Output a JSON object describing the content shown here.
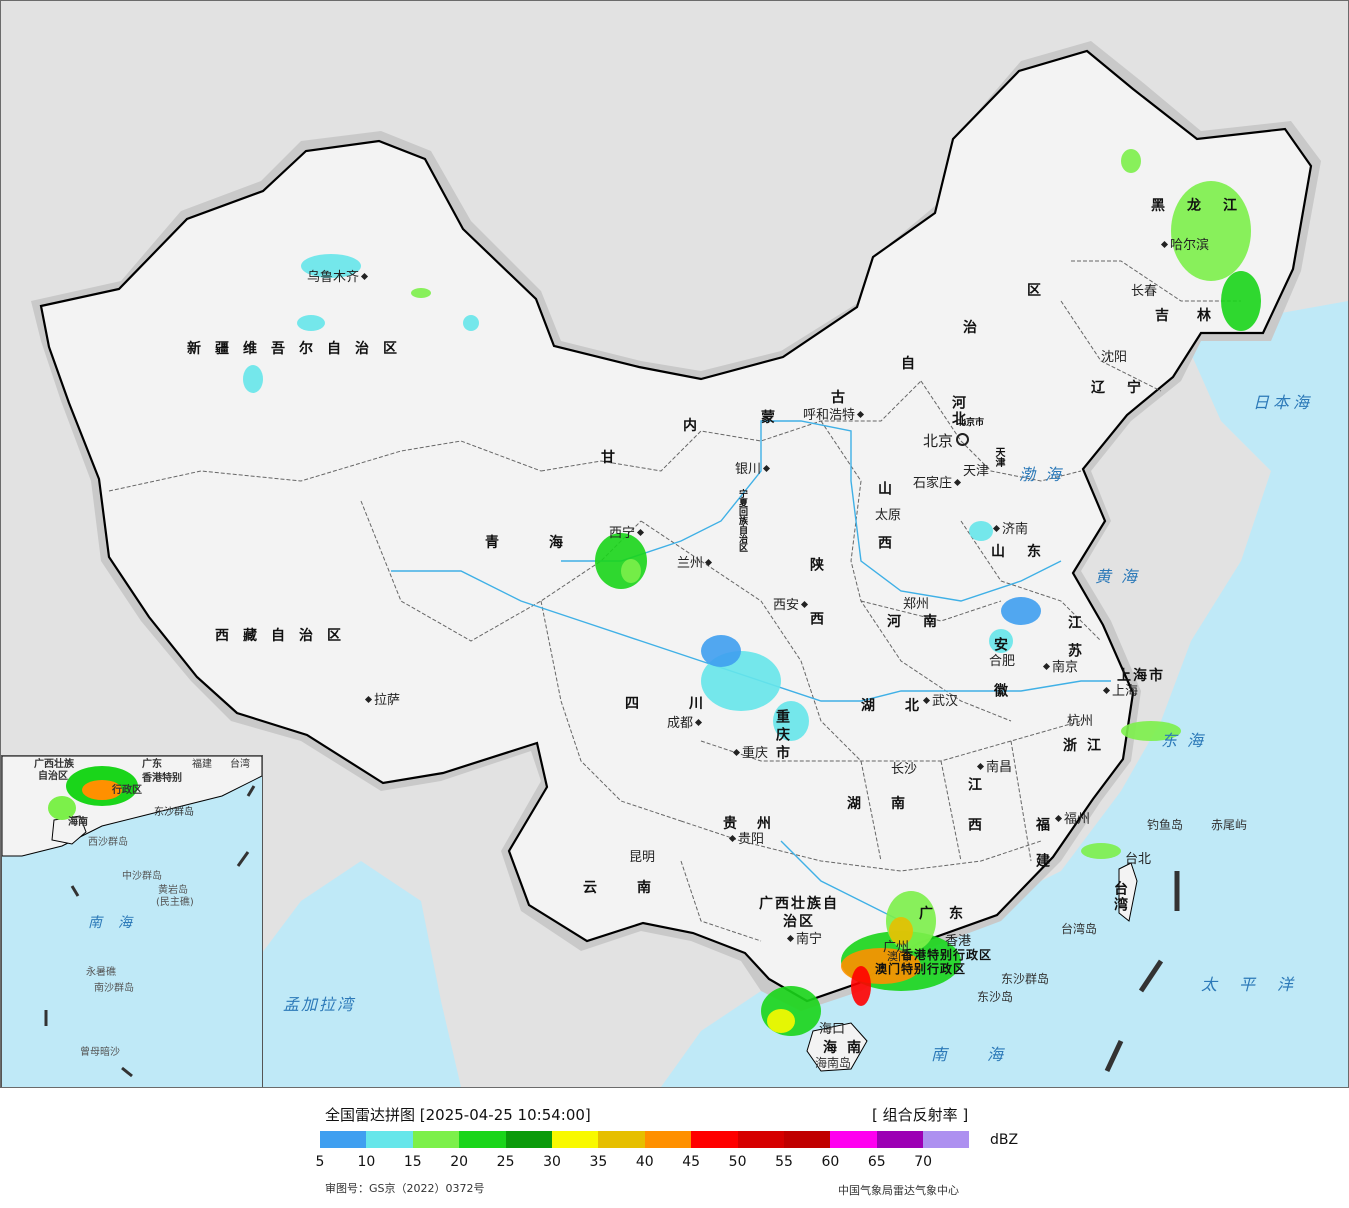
{
  "regions": {
    "xinjiang": "新疆维吾尔自治区",
    "xizang": "西藏自治区",
    "qinghai": "青海",
    "gansu": "甘",
    "neimenggu": [
      "内",
      "蒙",
      "古",
      "自",
      "治",
      "区"
    ],
    "heilongjiang": "黑龙江",
    "jilin": "吉林",
    "liaoning": "辽宁",
    "hebei": "河北",
    "shanxi": "山西",
    "shaanxi": "陕西",
    "henan": "河南",
    "shandong": "山东",
    "jiangsu": "江苏",
    "anhui": "安徽",
    "zhejiang": "浙江",
    "hubei": "湖北",
    "hunan": "湖南",
    "jiangxi": "江西",
    "fujian": "福建",
    "sichuan": "四川",
    "chongqing": "重庆市",
    "guizhou": "贵州",
    "yunnan": "云南",
    "guangxi": "广西壮族自治区",
    "guangdong": "广东",
    "hainan": "海南",
    "taiwan": "台湾",
    "shanghai": "上海市",
    "tianjin": "天津",
    "ningxia": "宁夏回族自治区",
    "hongkong": "香港特别行政区",
    "macau": "澳门特别行政区",
    "beijing_small": "北京市"
  },
  "cities": {
    "urumqi": "乌鲁木齐",
    "lhasa": "拉萨",
    "xining": "西宁",
    "lanzhou": "兰州",
    "yinchuan": "银川",
    "hohhot": "呼和浩特",
    "beijing": "北京",
    "tianjin": "天津",
    "shijiazhuang": "石家庄",
    "taiyuan": "太原",
    "jinan": "济南",
    "zhengzhou": "郑州",
    "xian": "西安",
    "hefei": "合肥",
    "nanjing": "南京",
    "shanghai": "上海",
    "hangzhou": "杭州",
    "wuhan": "武汉",
    "changsha": "长沙",
    "nanchang": "南昌",
    "fuzhou": "福州",
    "taipei": "台北",
    "chengdu": "成都",
    "chongqing": "重庆",
    "guiyang": "贵阳",
    "kunming": "昆明",
    "nanning": "南宁",
    "guangzhou": "广州",
    "hongkong": "香港",
    "macau": "澳门",
    "haikou": "海口",
    "harbin": "哈尔滨",
    "changchun": "长春",
    "shenyang": "沈阳"
  },
  "seas": {
    "bohai": "渤海",
    "huanghai": "黄海",
    "donghai": "东海",
    "nanhai": "南海",
    "taipingyang": "太平洋",
    "ribenhai": "日本海",
    "mengjialawan": "孟加拉湾"
  },
  "islands": {
    "diaoyu": "钓鱼岛",
    "chiwei": "赤尾屿",
    "taiwan_island": "台湾岛",
    "dongsha_qundao": "东沙群岛",
    "dongsha_dao": "东沙岛",
    "hainan_dao": "海南岛"
  },
  "inset": {
    "nanhai": "南海",
    "xisha": "西沙群岛",
    "zhongsha": "中沙群岛",
    "huangyan": "黄岩岛",
    "huangyan_note": "(民主礁)",
    "nansha": "南沙群岛",
    "yongshu": "永暑礁",
    "zengmu": "曾母暗沙",
    "guangxi": "广西壮族",
    "guangxi2": "自治区",
    "guangdong": "广东",
    "hainan": "海南",
    "hk": "香港特别",
    "hk2": "行政区",
    "dongsha": "东沙群岛",
    "fujian": "福建",
    "taiwan": "台湾"
  },
  "legend": {
    "title": "全国雷达拼图 [2025-04-25 10:54:00]",
    "product": "[ 组合反射率 ]",
    "unit": "dBZ",
    "ticks": [
      "5",
      "10",
      "15",
      "20",
      "25",
      "30",
      "35",
      "40",
      "45",
      "50",
      "55",
      "60",
      "65",
      "70"
    ],
    "colors": [
      "#3f9ff0",
      "#66e6ea",
      "#7cf04a",
      "#1ad51a",
      "#0b9a0b",
      "#f9f900",
      "#e6bf00",
      "#ff9000",
      "#ff0000",
      "#d60000",
      "#c00000",
      "#ff00f0",
      "#9c00b4",
      "#ad90f0"
    ],
    "approval": "审图号：GS京（2022）0372号",
    "credit": "中国气象局雷达气象中心"
  }
}
